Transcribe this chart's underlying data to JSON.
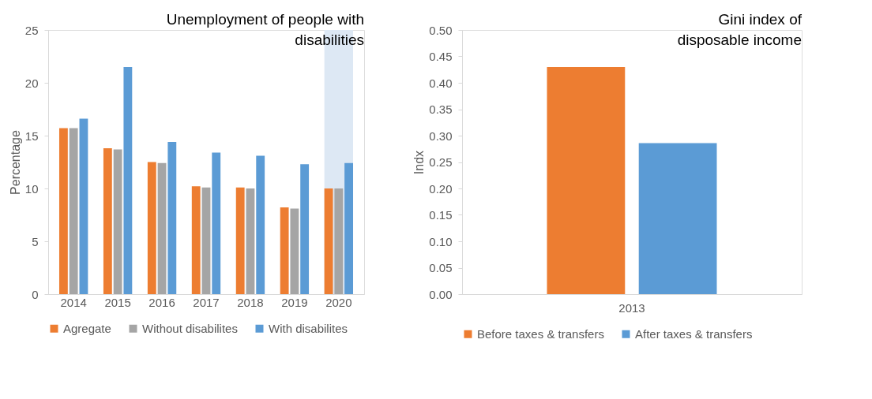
{
  "chart_data": [
    {
      "type": "bar",
      "title": "Unemployment of people with disabilities",
      "ylabel": "Percentage",
      "categories": [
        "2014",
        "2015",
        "2016",
        "2017",
        "2018",
        "2019",
        "2020"
      ],
      "series": [
        {
          "name": "Agregate",
          "color": "#ed7d31",
          "values": [
            15.7,
            13.8,
            12.5,
            10.2,
            10.1,
            8.2,
            10.0
          ]
        },
        {
          "name": "Without disabilites",
          "color": "#a5a5a5",
          "values": [
            15.7,
            13.7,
            12.4,
            10.1,
            10.0,
            8.1,
            10.0
          ]
        },
        {
          "name": "With disabilites",
          "color": "#5b9bd5",
          "values": [
            16.6,
            21.5,
            14.4,
            13.4,
            13.1,
            12.3,
            12.4
          ]
        }
      ],
      "bands": [
        {
          "axis": "x",
          "from": "2020",
          "to": "2020",
          "color": "#dde8f4"
        }
      ],
      "ylim": [
        0,
        25
      ],
      "yticks": [
        0,
        5,
        10,
        15,
        20,
        25
      ],
      "grid": false,
      "legend": "bottom"
    },
    {
      "type": "bar",
      "title": "Gini index of disposable income",
      "ylabel": "Indx",
      "categories": [
        "2013"
      ],
      "series": [
        {
          "name": "Before taxes & transfers",
          "color": "#ed7d31",
          "values": [
            0.43
          ]
        },
        {
          "name": "After taxes & transfers",
          "color": "#5b9bd5",
          "values": [
            0.286
          ]
        }
      ],
      "ylim": [
        0,
        0.5
      ],
      "yticks": [
        {
          "value": 0,
          "label": "0.00"
        },
        {
          "value": 0.05,
          "label": "0.05"
        },
        {
          "value": 0.1,
          "label": "0.10"
        },
        {
          "value": 0.15,
          "label": "0.15"
        },
        {
          "value": 0.2,
          "label": "0.20"
        },
        {
          "value": 0.25,
          "label": "0.25"
        },
        {
          "value": 0.3,
          "label": "0.30"
        },
        {
          "value": 0.35,
          "label": "0.35"
        },
        {
          "value": 0.4,
          "label": "0.40"
        },
        {
          "value": 0.45,
          "label": "0.45"
        },
        {
          "value": 0.5,
          "label": "0.50"
        }
      ],
      "grid": false,
      "legend": "bottom"
    }
  ]
}
